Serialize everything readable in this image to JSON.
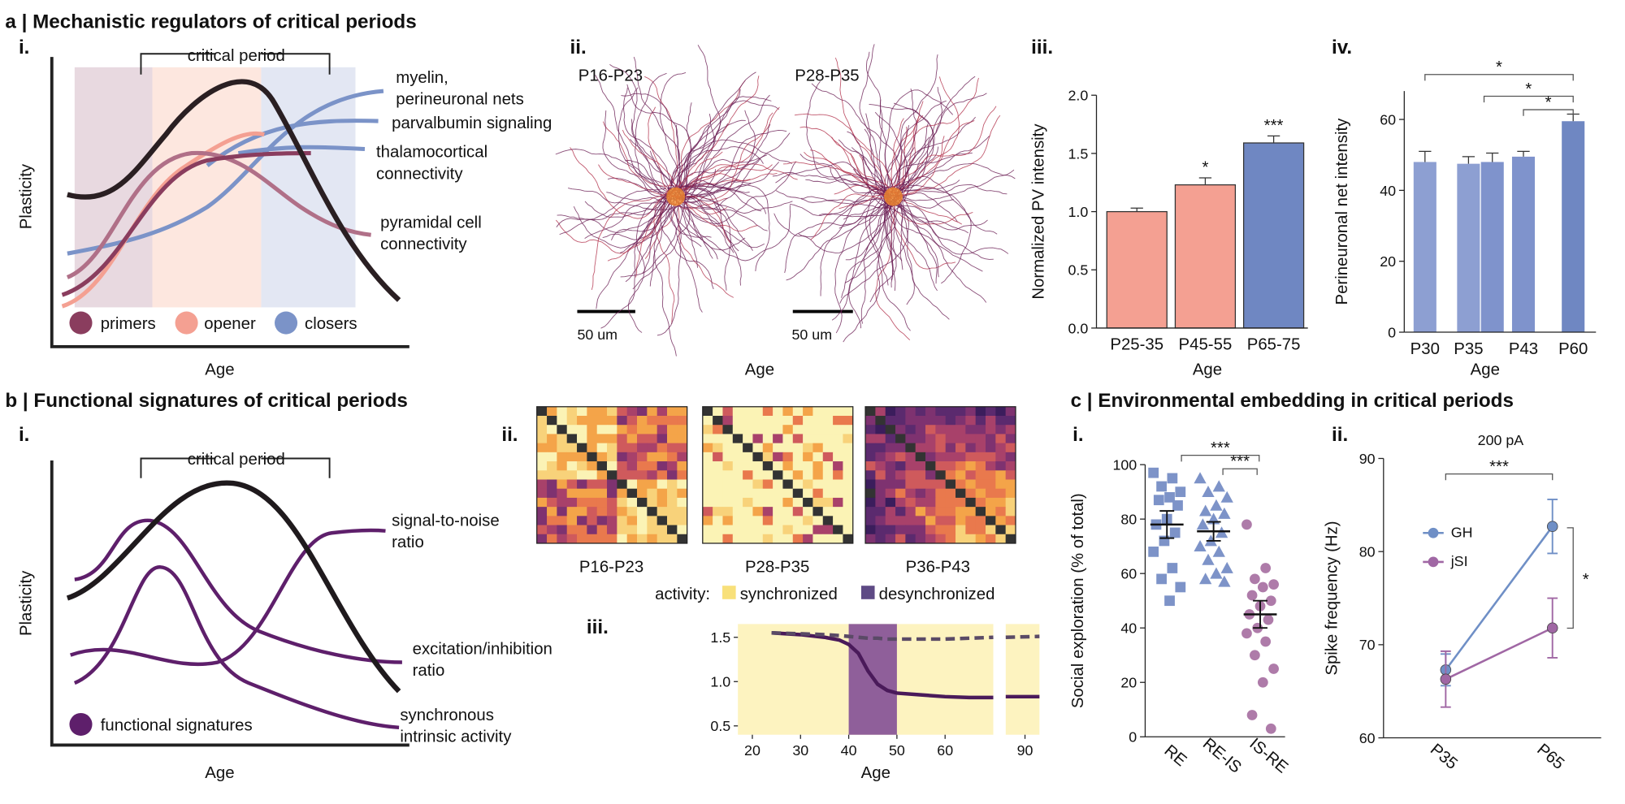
{
  "panel_a": {
    "title": "a | Mechanistic regulators of critical periods",
    "i": {
      "label": "i.",
      "critical_period": "critical period",
      "curve_labels": [
        [
          "myelin,",
          "perineuronal nets"
        ],
        [
          "parvalbumin signaling"
        ],
        [
          "thalamocortical",
          "connectivity"
        ],
        [
          "pyramidal cell",
          "connectivity"
        ]
      ],
      "legend": [
        "primers",
        "opener",
        "closers"
      ],
      "ylabel": "Plasticity",
      "xlabel": "Age"
    },
    "ii": {
      "label": "ii.",
      "images": [
        "P16-P23",
        "P28-P35"
      ],
      "scale_bars": [
        "50 um",
        "50 um"
      ],
      "xlabel": "Age"
    },
    "iii": {
      "label": "iii."
    },
    "iv": {
      "label": "iv."
    }
  },
  "panel_b": {
    "title": "b | Functional signatures of critical periods",
    "i": {
      "label": "i.",
      "critical_period": "critical period",
      "curve_labels": [
        [
          "signal-to-noise",
          "ratio"
        ],
        [
          "excitation/inhibition",
          "ratio"
        ],
        [
          "synchronous",
          "intrinsic activity"
        ]
      ],
      "legend": [
        "functional signatures"
      ],
      "ylabel": "Plasticity",
      "xlabel": "Age"
    },
    "ii": {
      "label": "ii.",
      "matrices": [
        "P16-P23",
        "P28-P35",
        "P36-P43"
      ],
      "activity_label": "activity:",
      "activity_legend": [
        "synchronized",
        "desynchronized"
      ]
    },
    "iii": {
      "label": "iii."
    }
  },
  "panel_c": {
    "title": "c | Environmental embedding in critical periods",
    "i": {
      "label": "i."
    },
    "ii": {
      "label": "ii."
    }
  },
  "chart_data": [
    {
      "type": "bar",
      "xlabel": "Age",
      "ylabel": "Normalized PV intensity",
      "categories": [
        "P25-35",
        "P45-55",
        "P65-75"
      ],
      "values": [
        1.0,
        1.23,
        1.59
      ],
      "errors": [
        0.03,
        0.06,
        0.06
      ],
      "colors": [
        "#f4a092",
        "#f4a092",
        "#6f87c2"
      ],
      "annotations": [
        null,
        "*",
        "***"
      ],
      "ylim": [
        0,
        2
      ],
      "yticks": [
        {
          "value": 0,
          "label": "0.0"
        },
        0.5,
        {
          "value": 1,
          "label": "1.0"
        },
        1.5,
        {
          "value": 2,
          "label": "2.0"
        }
      ]
    },
    {
      "type": "bar",
      "xlabel": "Age",
      "ylabel": "Perineuronal net intensity",
      "categories": [
        "P30",
        "P35",
        null,
        "P43",
        "P60"
      ],
      "values": [
        48,
        47.5,
        48,
        49.5,
        59.5
      ],
      "errors": [
        3,
        2,
        2.5,
        1.5,
        2
      ],
      "colors": [
        "#8d9fd2",
        "#8d9fd2",
        "#7f93cc",
        "#7f93cc",
        "#6f87c2"
      ],
      "significance": [
        "*",
        "*",
        "*"
      ],
      "ylim": [
        0,
        68
      ],
      "yticks": [
        0,
        20,
        40,
        60
      ]
    },
    {
      "type": "strip",
      "ylabel": "Social exploration (% of total)",
      "categories": [
        "RE",
        "RE-IS",
        "IS-RE"
      ],
      "markers": [
        "square",
        "triangle",
        "circle"
      ],
      "colors": [
        "#7d93c8",
        "#7d93c8",
        "#a0649a"
      ],
      "points": [
        [
          97,
          95,
          92,
          90,
          88,
          87,
          85,
          80,
          78,
          75,
          72,
          68,
          62,
          58,
          55,
          50
        ],
        [
          95,
          92,
          90,
          88,
          85,
          83,
          82,
          80,
          78,
          75,
          72,
          70,
          68,
          65,
          62,
          60,
          58,
          57
        ],
        [
          78,
          62,
          58,
          56,
          55,
          52,
          50,
          48,
          45,
          43,
          40,
          38,
          35,
          30,
          25,
          20,
          8,
          3
        ]
      ],
      "means": [
        78,
        75.5,
        45
      ],
      "sems": [
        5,
        3.5,
        5
      ],
      "significance": [
        "***",
        "***"
      ],
      "ylim": [
        0,
        100
      ],
      "yticks": [
        0,
        20,
        40,
        60,
        80,
        100
      ]
    },
    {
      "type": "line",
      "subtitle": "200 pA",
      "ylabel": "Spike frequency (Hz)",
      "categories": [
        "P35",
        "P65"
      ],
      "series": [
        {
          "name": "GH",
          "color": "#6f8fc6",
          "values": [
            67.3,
            82.7
          ],
          "errors": [
            1.7,
            2.9
          ]
        },
        {
          "name": "jSI",
          "color": "#a067a4",
          "values": [
            66.3,
            71.8
          ],
          "errors": [
            3,
            3.2
          ]
        }
      ],
      "significance": [
        "***",
        "*"
      ],
      "ylim": [
        60,
        90
      ],
      "yticks": [
        60,
        70,
        80,
        90
      ]
    },
    {
      "type": "area_line",
      "xlabel": "Age",
      "x": [
        24,
        30,
        35,
        38,
        40,
        42,
        44,
        46,
        48,
        50,
        55,
        60,
        65,
        70,
        86,
        93
      ],
      "series": [
        {
          "color": "#4a1a5a",
          "style": "solid",
          "values": [
            1.55,
            1.53,
            1.5,
            1.47,
            1.42,
            1.32,
            1.12,
            0.97,
            0.9,
            0.87,
            0.85,
            0.83,
            0.82,
            0.82,
            0.83,
            0.83
          ]
        },
        {
          "color": "#5a4a66",
          "style": "dashed",
          "values": [
            1.55,
            1.54,
            1.53,
            1.52,
            1.51,
            1.5,
            1.49,
            1.49,
            1.48,
            1.48,
            1.48,
            1.48,
            1.49,
            1.5,
            1.5,
            1.51
          ]
        }
      ],
      "background": "#fdf3c0",
      "highlight": [
        40,
        50
      ],
      "highlight_color": "#8f5f9a",
      "axis_break": [
        70,
        86
      ],
      "xlim": [
        17,
        93
      ],
      "xticks": [
        20,
        30,
        40,
        50,
        60,
        90
      ],
      "ylim": [
        0.4,
        1.65
      ],
      "yticks": [
        0.5,
        {
          "value": 1,
          "label": "1.0"
        },
        1.5
      ]
    }
  ]
}
